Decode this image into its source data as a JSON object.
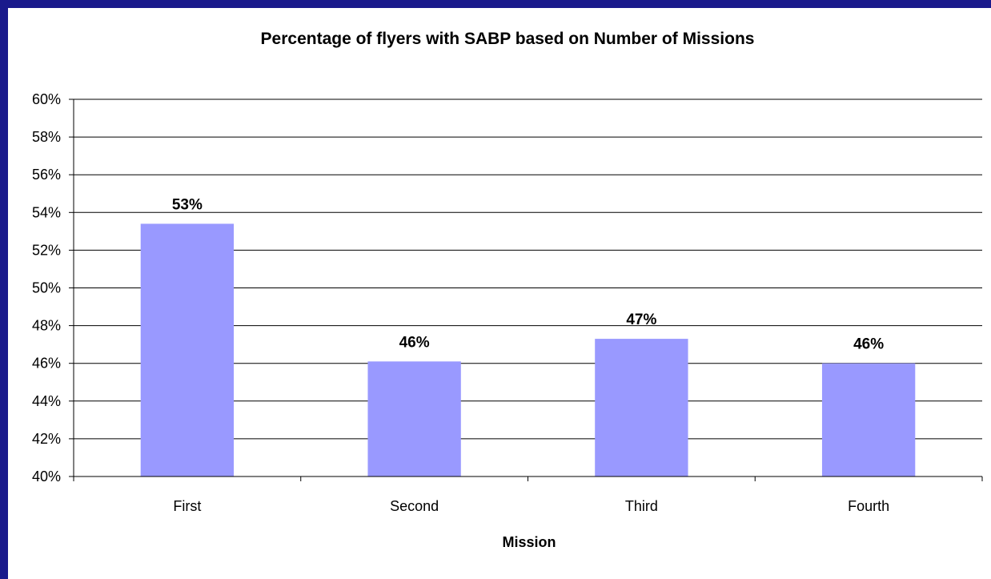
{
  "chart_data": {
    "type": "bar",
    "title": "Percentage of flyers with SABP based on Number of Missions",
    "xlabel": "Mission",
    "ylabel": "",
    "categories": [
      "First",
      "Second",
      "Third",
      "Fourth"
    ],
    "values": [
      53.4,
      46.1,
      47.3,
      46.0
    ],
    "data_labels": [
      "53%",
      "46%",
      "47%",
      "46%"
    ],
    "ylim": [
      40,
      60
    ],
    "yticks": [
      40,
      42,
      44,
      46,
      48,
      50,
      52,
      54,
      56,
      58,
      60
    ],
    "ytick_labels": [
      "40%",
      "42%",
      "44%",
      "46%",
      "48%",
      "50%",
      "52%",
      "54%",
      "56%",
      "58%",
      "60%"
    ],
    "grid": true,
    "legend": "none",
    "colors": {
      "bar": "#9999ff",
      "background_frame": "#1a1a8c",
      "gridline": "#000000",
      "axis": "#000000"
    }
  }
}
